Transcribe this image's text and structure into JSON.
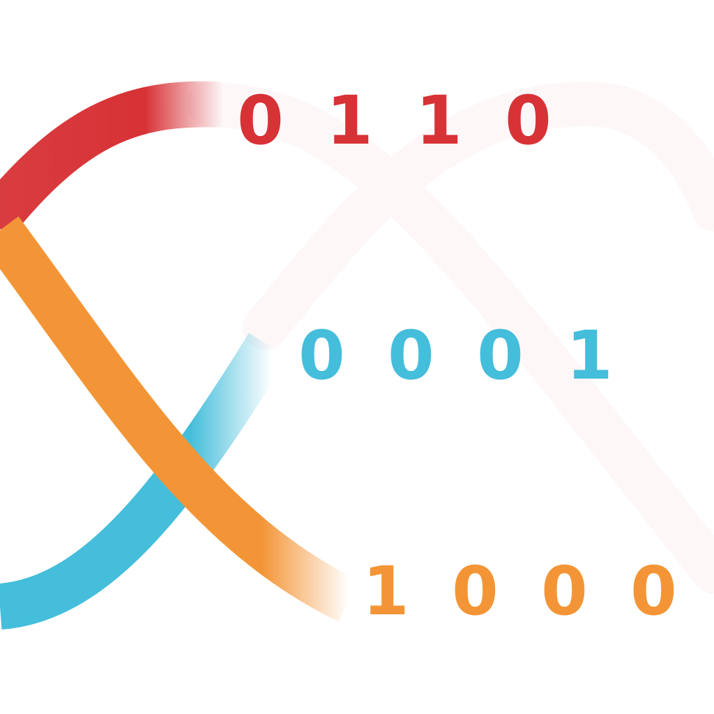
{
  "rows": [
    {
      "bits": [
        "0",
        "1",
        "1",
        "0"
      ],
      "color": "#d73236"
    },
    {
      "bits": [
        "0",
        "0",
        "0",
        "1"
      ],
      "color": "#44bedb"
    },
    {
      "bits": [
        "1",
        "0",
        "0",
        "0"
      ],
      "color": "#f39536"
    }
  ],
  "colors": {
    "background": "#ffffff",
    "red": "#d73236",
    "blue": "#44bedb",
    "orange": "#f39536",
    "faint": "#fdf7f8"
  }
}
